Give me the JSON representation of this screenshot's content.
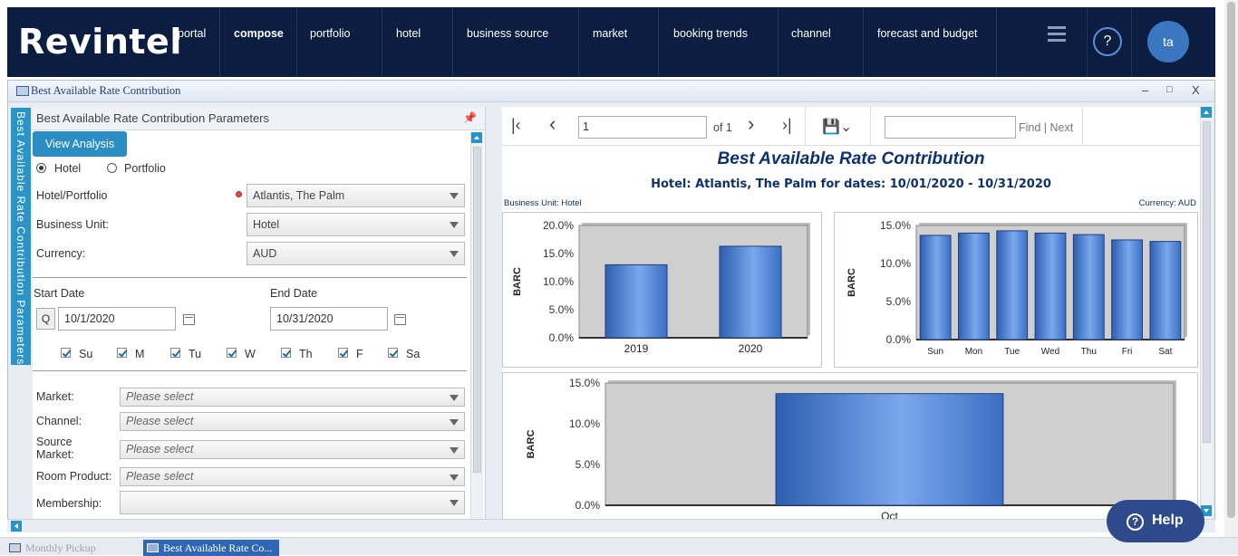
{
  "nav": {
    "logo": "Revintel",
    "items": [
      "portal",
      "compose",
      "portfolio",
      "hotel",
      "business source",
      "market",
      "booking trends",
      "channel",
      "forecast and budget"
    ],
    "help": "?",
    "avatar": "ta"
  },
  "window": {
    "title": "Best Available Rate Contribution",
    "controls": [
      "–",
      "□",
      "X"
    ]
  },
  "vertical_tab": "Best Available Rate Contribution Parameters",
  "params": {
    "title": "Best Available Rate Contribution Parameters",
    "view_button": "View Analysis",
    "radio_hotel": "Hotel",
    "radio_portfolio": "Portfolio",
    "hotel_portfolio_label": "Hotel/Portfolio",
    "hotel_portfolio_value": "Atlantis, The Palm",
    "business_unit_label": "Business Unit:",
    "business_unit_value": "Hotel",
    "currency_label": "Currency:",
    "currency_value": "AUD",
    "start_date_label": "Start Date",
    "start_date_value": "10/1/2020",
    "end_date_label": "End Date",
    "end_date_value": "10/31/2020",
    "q_button": "Q",
    "days": [
      "Su",
      "M",
      "Tu",
      "W",
      "Th",
      "F",
      "Sa"
    ],
    "market_label": "Market:",
    "channel_label": "Channel:",
    "source_market_label": "Source Market:",
    "room_product_label": "Room Product:",
    "membership_label": "Membership:",
    "placeholder": "Please select"
  },
  "report": {
    "page_value": "1",
    "of_label": "of 1",
    "find_label": "Find | Next",
    "title": "Best Available Rate Contribution",
    "subtitle": "Hotel: Atlantis, The Palm for dates: 10/01/2020 - 10/31/2020",
    "business_unit": "Business Unit: Hotel",
    "currency": "Currency: AUD"
  },
  "chart_data": [
    {
      "type": "bar",
      "categories": [
        "2019",
        "2020"
      ],
      "values": [
        13.0,
        16.3
      ],
      "ylabel": "BARC",
      "ylim": [
        0,
        20
      ],
      "yticks": [
        "0.0%",
        "5.0%",
        "10.0%",
        "15.0%",
        "20.0%"
      ]
    },
    {
      "type": "bar",
      "categories": [
        "Sun",
        "Mon",
        "Tue",
        "Wed",
        "Thu",
        "Fri",
        "Sat"
      ],
      "values": [
        13.7,
        14.0,
        14.3,
        14.0,
        13.8,
        13.1,
        12.9
      ],
      "ylabel": "BARC",
      "ylim": [
        0,
        15
      ],
      "yticks": [
        "0.0%",
        "5.0%",
        "10.0%",
        "15.0%"
      ]
    },
    {
      "type": "bar",
      "categories": [
        "Oct"
      ],
      "values": [
        13.7
      ],
      "ylabel": "BARC",
      "ylim": [
        0,
        15
      ],
      "yticks": [
        "0.0%",
        "5.0%",
        "10.0%",
        "15.0%"
      ]
    }
  ],
  "taskbar": {
    "task1": "Monthly Pickup",
    "task2": "Best Available Rate Co..."
  },
  "help_button": "Help",
  "colors": {
    "nav_bg": "#0b1e42",
    "accent": "#2a8ec4",
    "bar": "#4f86d6",
    "plot_bg": "#cfcfcf"
  }
}
